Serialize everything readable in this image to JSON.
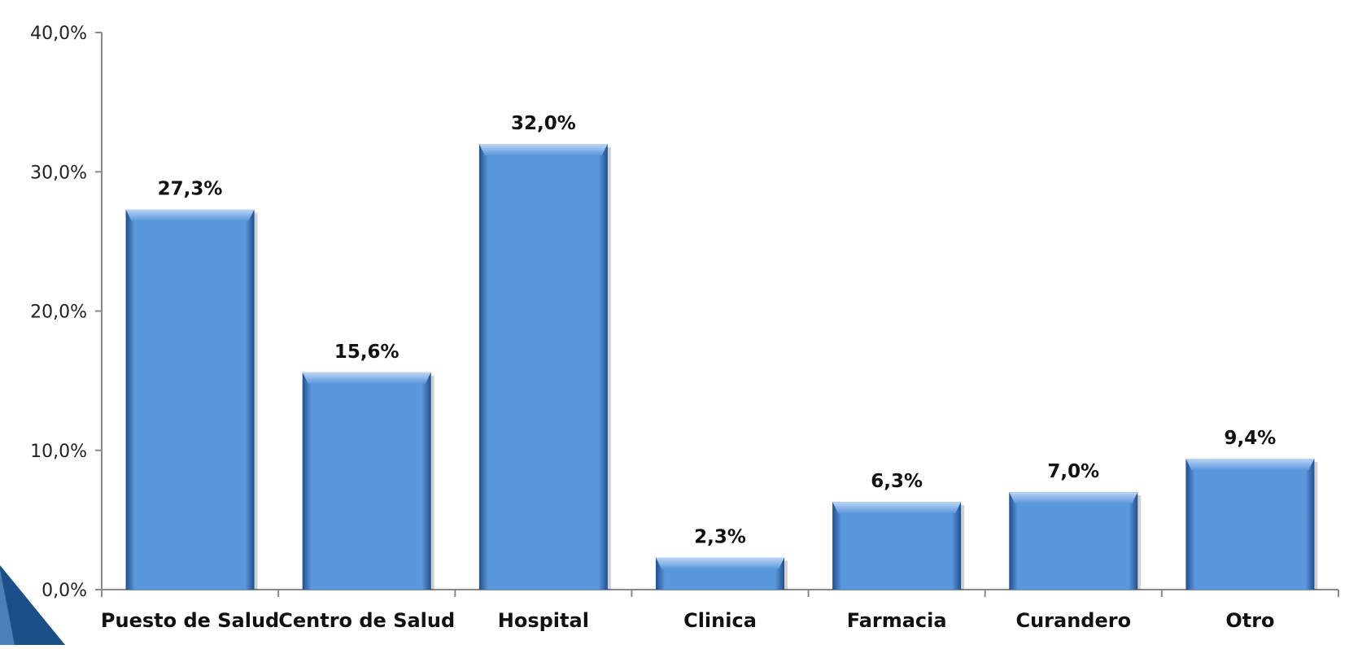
{
  "chart_data": {
    "type": "bar",
    "title": "",
    "xlabel": "",
    "ylabel": "",
    "categories": [
      "Puesto de Salud",
      "Centro de Salud",
      "Hospital",
      "Clinica",
      "Farmacia",
      "Curandero",
      "Otro"
    ],
    "values": [
      27.3,
      15.6,
      32.0,
      2.3,
      6.3,
      7.0,
      9.4
    ],
    "value_labels": [
      "27,3%",
      "15,6%",
      "32,0%",
      "2,3%",
      "6,3%",
      "7,0%",
      "9,4%"
    ],
    "ylim": [
      0,
      40
    ],
    "yticks": [
      0,
      10,
      20,
      30,
      40
    ],
    "ytick_labels": [
      "0,0%",
      "10,0%",
      "20,0%",
      "30,0%",
      "40,0%"
    ],
    "grid": false,
    "legend": "none",
    "colors": {
      "bar": "#5b97dd",
      "bar_dark": "#1f4f8c",
      "bar_light": "#9cc3f0",
      "axis": "#8a8a8a",
      "corner_accent": "#1b4f8a"
    }
  }
}
